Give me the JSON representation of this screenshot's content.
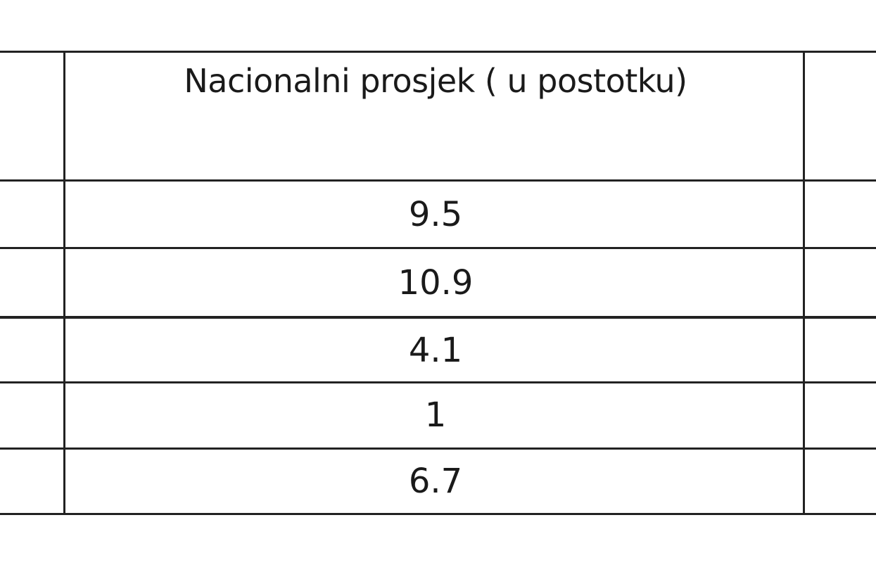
{
  "table": {
    "header": "Nacionalni prosjek ( u postotku)",
    "values": [
      "9.5",
      "10.9",
      "4.1",
      "1",
      "6.7"
    ]
  }
}
